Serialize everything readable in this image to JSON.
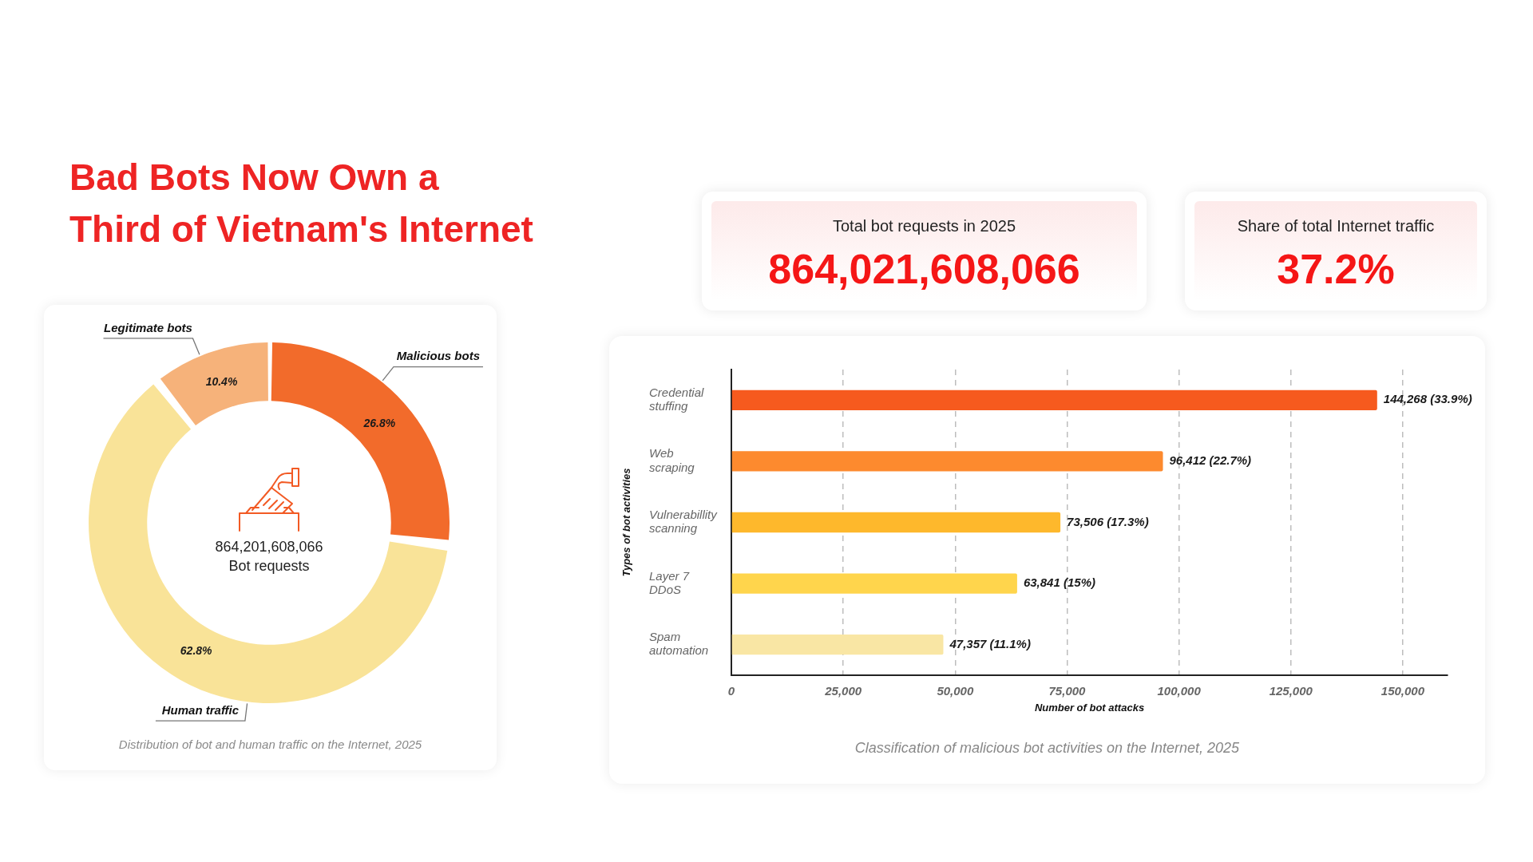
{
  "chart_data": [
    {
      "type": "donut",
      "title": "Bad Bots Now Own a Third of Vietnam's Internet",
      "categories": [
        "Malicious bots",
        "Human traffic",
        "Legitimate bots"
      ],
      "values": [
        26.8,
        62.8,
        10.4
      ],
      "colors": [
        "#f26b2b",
        "#f9e398",
        "#f6b27a"
      ],
      "value_labels": [
        "26.8%",
        "62.8%",
        "10.4%"
      ],
      "annotations": [
        "864,201,608,066",
        "Bot requests",
        "Distribution of bot and human traffic on the Internet, 2025"
      ]
    },
    {
      "type": "other",
      "title": "Total bot requests in 2025",
      "annotations": [
        "864,021,608,066"
      ]
    },
    {
      "type": "other",
      "title": "Share of total Internet traffic",
      "annotations": [
        "37.2%"
      ]
    },
    {
      "type": "bar",
      "orientation": "horizontal",
      "categories": [
        "Credential stuffing",
        "Web scraping",
        "Vulnerabillity scanning",
        "Layer 7 DDoS",
        "Spam automation"
      ],
      "values": [
        144268,
        96412,
        73506,
        63841,
        47357
      ],
      "colors": [
        "#f65a1e",
        "#fd8a2e",
        "#feb82c",
        "#ffd54c",
        "#f9e6a4"
      ],
      "value_labels": [
        "144,268 (33.9%)",
        "96,412 (22.7%)",
        "73,506 (17.3%)",
        "63,841 (15%)",
        "47,357 (11.1%)"
      ],
      "xlabel": "Number of bot attacks",
      "ylabel": "Types of bot activities",
      "xlim": [
        0,
        160000
      ],
      "xticks": [
        0,
        {
          "value": 25000,
          "label": "25,000"
        },
        {
          "value": 50000,
          "label": "50,000"
        },
        {
          "value": 75000,
          "label": "75,000"
        },
        {
          "value": 100000,
          "label": "100,000"
        },
        {
          "value": 125000,
          "label": "125,000"
        },
        {
          "value": 150000,
          "label": "150,000"
        }
      ],
      "grid": "x",
      "annotations": [
        "Classification of malicious bot activities on the Internet, 2025"
      ]
    }
  ]
}
